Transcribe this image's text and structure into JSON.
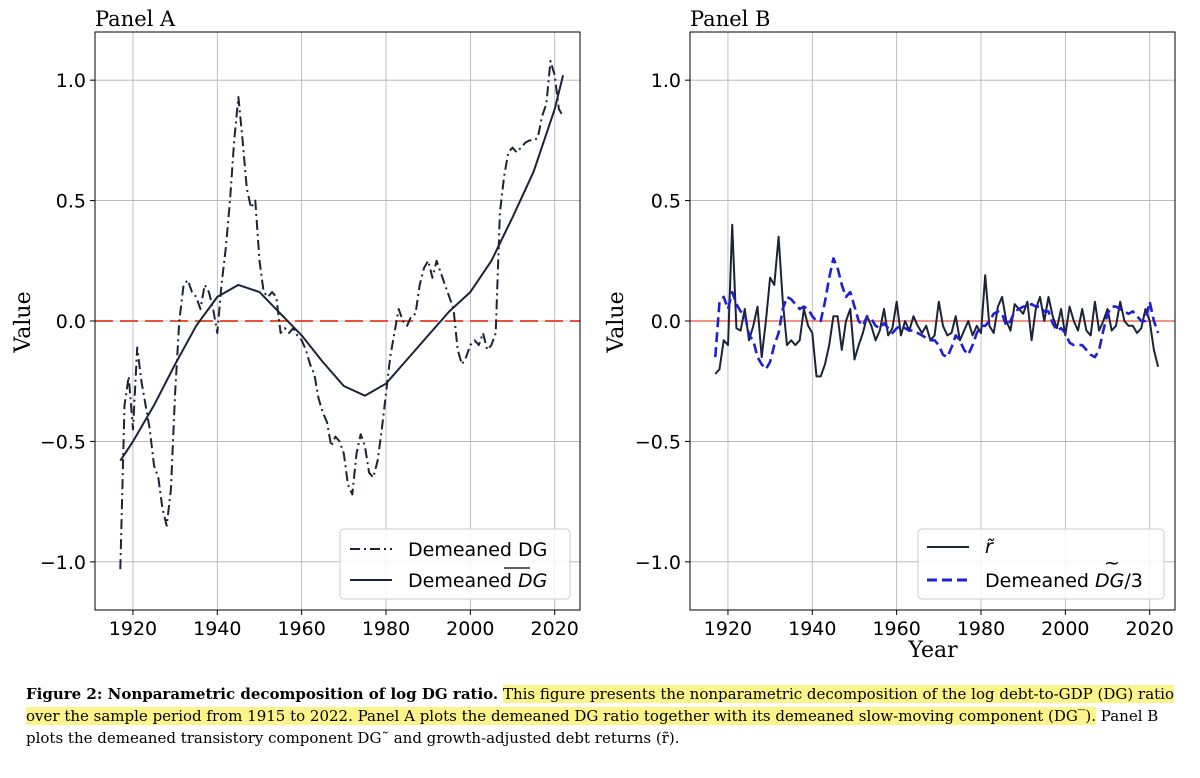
{
  "chart_data": [
    {
      "type": "line",
      "title": "Panel A",
      "xlabel": "",
      "ylabel": "Value",
      "xlim": [
        1911,
        2026
      ],
      "ylim": [
        -1.2,
        1.2
      ],
      "xticks": [
        "1920",
        "1940",
        "1960",
        "1980",
        "2000",
        "2020"
      ],
      "yticks": [
        "1.0",
        "0.5",
        "0.0",
        "−0.5",
        "−1.0"
      ],
      "grid": true,
      "legend_position": "lower right",
      "reference_line": {
        "y": 0.0,
        "color": "#e8533a",
        "style": "dashed"
      },
      "series": [
        {
          "name": "Demeaned DG",
          "style": "dashdot",
          "color": "#1b2436",
          "x": [
            1917,
            1918,
            1919,
            1920,
            1921,
            1922,
            1923,
            1924,
            1925,
            1926,
            1927,
            1928,
            1929,
            1930,
            1931,
            1932,
            1933,
            1934,
            1935,
            1936,
            1937,
            1938,
            1939,
            1940,
            1941,
            1942,
            1943,
            1944,
            1945,
            1946,
            1947,
            1948,
            1949,
            1950,
            1951,
            1952,
            1953,
            1954,
            1955,
            1956,
            1957,
            1958,
            1959,
            1960,
            1961,
            1962,
            1963,
            1964,
            1965,
            1966,
            1967,
            1968,
            1969,
            1970,
            1971,
            1972,
            1973,
            1974,
            1975,
            1976,
            1977,
            1978,
            1979,
            1980,
            1981,
            1982,
            1983,
            1984,
            1985,
            1986,
            1987,
            1988,
            1989,
            1990,
            1991,
            1992,
            1993,
            1994,
            1995,
            1996,
            1997,
            1998,
            1999,
            2000,
            2001,
            2002,
            2003,
            2004,
            2005,
            2006,
            2007,
            2008,
            2009,
            2010,
            2011,
            2012,
            2013,
            2014,
            2015,
            2016,
            2017,
            2018,
            2019,
            2020,
            2021,
            2022
          ],
          "values": [
            -1.03,
            -0.35,
            -0.23,
            -0.45,
            -0.11,
            -0.25,
            -0.35,
            -0.45,
            -0.6,
            -0.65,
            -0.78,
            -0.85,
            -0.7,
            -0.3,
            0.0,
            0.15,
            0.17,
            0.12,
            0.1,
            0.05,
            0.15,
            0.12,
            0.05,
            -0.05,
            0.15,
            0.3,
            0.5,
            0.75,
            0.93,
            0.75,
            0.55,
            0.47,
            0.5,
            0.25,
            0.12,
            0.1,
            0.12,
            0.1,
            -0.05,
            -0.03,
            -0.05,
            -0.03,
            -0.06,
            -0.08,
            -0.12,
            -0.18,
            -0.22,
            -0.32,
            -0.38,
            -0.42,
            -0.52,
            -0.48,
            -0.5,
            -0.55,
            -0.68,
            -0.72,
            -0.55,
            -0.47,
            -0.52,
            -0.63,
            -0.65,
            -0.58,
            -0.45,
            -0.3,
            -0.15,
            -0.05,
            0.05,
            0.0,
            -0.02,
            0.02,
            0.03,
            0.15,
            0.22,
            0.25,
            0.18,
            0.25,
            0.2,
            0.15,
            0.1,
            0.05,
            -0.12,
            -0.18,
            -0.15,
            -0.1,
            -0.08,
            -0.1,
            -0.05,
            -0.12,
            -0.1,
            -0.05,
            0.45,
            0.6,
            0.7,
            0.72,
            0.7,
            0.72,
            0.74,
            0.75,
            0.75,
            0.76,
            0.85,
            0.9,
            1.08,
            1.02,
            0.88,
            0.85
          ]
        },
        {
          "name": "Demeaned $\\overline{DG}$",
          "style": "solid",
          "color": "#1b2436",
          "x": [
            1917,
            1920,
            1925,
            1930,
            1935,
            1940,
            1945,
            1950,
            1955,
            1960,
            1965,
            1970,
            1975,
            1980,
            1985,
            1990,
            1995,
            2000,
            2005,
            2010,
            2015,
            2020,
            2022
          ],
          "values": [
            -0.58,
            -0.5,
            -0.35,
            -0.18,
            -0.02,
            0.1,
            0.15,
            0.12,
            0.03,
            -0.06,
            -0.17,
            -0.27,
            -0.31,
            -0.26,
            -0.16,
            -0.06,
            0.04,
            0.12,
            0.25,
            0.43,
            0.62,
            0.88,
            1.02
          ]
        }
      ]
    },
    {
      "type": "line",
      "title": "Panel B",
      "xlabel": "Year",
      "ylabel": "Value",
      "xlim": [
        1911,
        2026
      ],
      "ylim": [
        -1.2,
        1.2
      ],
      "xticks": [
        "1920",
        "1940",
        "1960",
        "1980",
        "2000",
        "2020"
      ],
      "yticks": [
        "1.0",
        "0.5",
        "0.0",
        "−0.5",
        "−1.0"
      ],
      "grid": true,
      "legend_position": "lower right",
      "reference_line": {
        "y": 0.0,
        "color": "#e8533a",
        "style": "solid"
      },
      "series": [
        {
          "name": "$\\tilde{r}$",
          "style": "solid",
          "color": "#1b2436",
          "x": [
            1917,
            1918,
            1919,
            1920,
            1921,
            1922,
            1923,
            1924,
            1925,
            1926,
            1927,
            1928,
            1929,
            1930,
            1931,
            1932,
            1933,
            1934,
            1935,
            1936,
            1937,
            1938,
            1939,
            1940,
            1941,
            1942,
            1943,
            1944,
            1945,
            1946,
            1947,
            1948,
            1949,
            1950,
            1951,
            1952,
            1953,
            1954,
            1955,
            1956,
            1957,
            1958,
            1959,
            1960,
            1961,
            1962,
            1963,
            1964,
            1965,
            1966,
            1967,
            1968,
            1969,
            1970,
            1971,
            1972,
            1973,
            1974,
            1975,
            1976,
            1977,
            1978,
            1979,
            1980,
            1981,
            1982,
            1983,
            1984,
            1985,
            1986,
            1987,
            1988,
            1989,
            1990,
            1991,
            1992,
            1993,
            1994,
            1995,
            1996,
            1997,
            1998,
            1999,
            2000,
            2001,
            2002,
            2003,
            2004,
            2005,
            2006,
            2007,
            2008,
            2009,
            2010,
            2011,
            2012,
            2013,
            2014,
            2015,
            2016,
            2017,
            2018,
            2019,
            2020,
            2021,
            2022
          ],
          "values": [
            -0.22,
            -0.2,
            -0.08,
            -0.1,
            0.4,
            -0.03,
            -0.04,
            0.05,
            -0.08,
            -0.02,
            0.06,
            -0.15,
            0.0,
            0.18,
            0.15,
            0.35,
            0.08,
            -0.1,
            -0.08,
            -0.1,
            -0.08,
            0.05,
            -0.02,
            -0.05,
            -0.23,
            -0.23,
            -0.18,
            -0.1,
            0.02,
            0.02,
            -0.12,
            0.0,
            0.05,
            -0.16,
            -0.1,
            -0.05,
            0.02,
            -0.02,
            -0.08,
            -0.04,
            0.05,
            -0.06,
            -0.03,
            0.08,
            -0.06,
            0.0,
            -0.04,
            0.02,
            -0.02,
            -0.05,
            -0.02,
            -0.08,
            -0.06,
            0.08,
            -0.02,
            -0.06,
            -0.05,
            0.02,
            -0.08,
            -0.04,
            0.0,
            -0.06,
            -0.02,
            -0.05,
            0.19,
            -0.02,
            -0.05,
            0.06,
            0.1,
            0.0,
            -0.04,
            0.07,
            0.05,
            0.03,
            0.08,
            -0.08,
            0.05,
            0.1,
            0.0,
            0.1,
            0.02,
            -0.03,
            0.05,
            -0.06,
            0.06,
            0.0,
            -0.04,
            0.05,
            -0.04,
            -0.06,
            0.08,
            -0.04,
            0.0,
            0.05,
            -0.04,
            -0.02,
            0.08,
            0.0,
            -0.02,
            -0.02,
            -0.05,
            -0.03,
            0.05,
            0.0,
            -0.12,
            -0.19
          ]
        },
        {
          "name": "Demeaned $\\widetilde{DG}/3$",
          "style": "dashed",
          "color": "#1f1fd6",
          "x": [
            1917,
            1918,
            1919,
            1920,
            1921,
            1922,
            1923,
            1924,
            1925,
            1926,
            1927,
            1928,
            1929,
            1930,
            1931,
            1932,
            1933,
            1934,
            1935,
            1936,
            1937,
            1938,
            1939,
            1940,
            1941,
            1942,
            1943,
            1944,
            1945,
            1946,
            1947,
            1948,
            1949,
            1950,
            1951,
            1952,
            1953,
            1954,
            1955,
            1956,
            1957,
            1958,
            1959,
            1960,
            1961,
            1962,
            1963,
            1964,
            1965,
            1966,
            1967,
            1968,
            1969,
            1970,
            1971,
            1972,
            1973,
            1974,
            1975,
            1976,
            1977,
            1978,
            1979,
            1980,
            1981,
            1982,
            1983,
            1984,
            1985,
            1986,
            1987,
            1988,
            1989,
            1990,
            1991,
            1992,
            1993,
            1994,
            1995,
            1996,
            1997,
            1998,
            1999,
            2000,
            2001,
            2002,
            2003,
            2004,
            2005,
            2006,
            2007,
            2008,
            2009,
            2010,
            2011,
            2012,
            2013,
            2014,
            2015,
            2016,
            2017,
            2018,
            2019,
            2020,
            2021,
            2022
          ],
          "values": [
            -0.15,
            0.08,
            0.1,
            0.05,
            0.12,
            0.07,
            0.04,
            0.03,
            -0.06,
            -0.08,
            -0.15,
            -0.18,
            -0.2,
            -0.17,
            -0.1,
            -0.05,
            0.05,
            0.1,
            0.09,
            0.07,
            0.05,
            0.06,
            0.05,
            0.02,
            0.0,
            0.0,
            0.08,
            0.18,
            0.26,
            0.22,
            0.15,
            0.1,
            0.12,
            0.06,
            0.0,
            -0.02,
            0.02,
            0.01,
            -0.02,
            -0.03,
            -0.01,
            -0.03,
            -0.05,
            -0.03,
            -0.02,
            -0.03,
            -0.04,
            -0.04,
            -0.05,
            -0.06,
            -0.07,
            -0.08,
            -0.08,
            -0.1,
            -0.14,
            -0.15,
            -0.11,
            -0.06,
            -0.08,
            -0.12,
            -0.14,
            -0.1,
            -0.05,
            -0.02,
            -0.02,
            0.0,
            0.03,
            0.04,
            0.03,
            -0.02,
            0.0,
            0.04,
            0.05,
            0.06,
            0.06,
            0.07,
            0.06,
            0.06,
            0.04,
            0.04,
            -0.01,
            -0.04,
            -0.03,
            -0.05,
            -0.09,
            -0.1,
            -0.1,
            -0.1,
            -0.12,
            -0.14,
            -0.15,
            -0.12,
            -0.04,
            0.03,
            0.06,
            0.06,
            0.05,
            0.04,
            0.03,
            0.04,
            0.02,
            0.0,
            0.0,
            0.08,
            0.0,
            -0.05
          ]
        }
      ]
    }
  ],
  "caption": {
    "title": "Figure 2: Nonparametric decomposition of log DG ratio.",
    "text_highlighted": "This figure presents the nonparametric decomposition of the log debt-to-GDP (DG) ratio over the sample period from 1915 to 2022. Panel A plots the demeaned DG ratio together with its demeaned slow-moving component (DG‾).",
    "text_rest": "Panel B plots the demeaned transistory component DG˜ and growth-adjusted debt returns (r̃)."
  },
  "colors": {
    "dark_line": "#1b2436",
    "blue_dashed": "#1f1fd6",
    "zero_line": "#e8533a",
    "grid": "#b0b0b0",
    "highlight": "#fbf48a"
  }
}
